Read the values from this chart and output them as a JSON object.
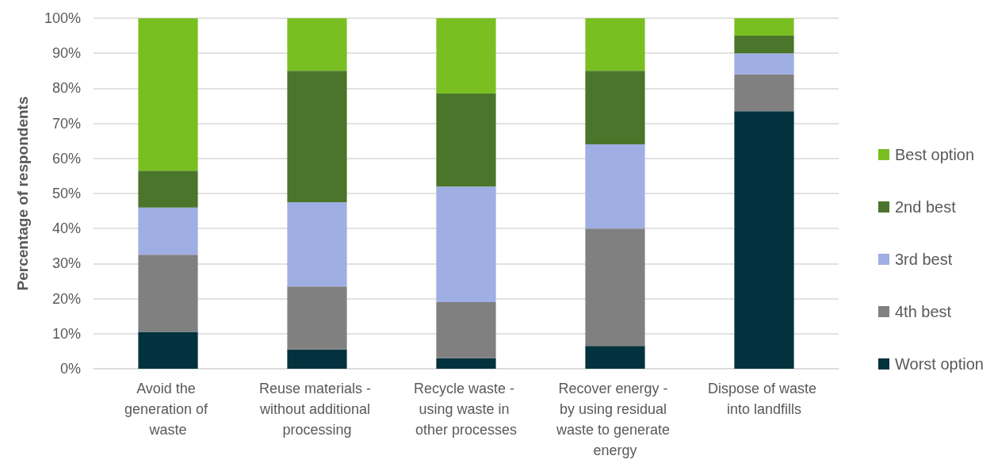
{
  "chart_data": {
    "type": "bar",
    "stacked": true,
    "ylabel": "Percentage of respondents",
    "categories": [
      "Avoid the generation of waste",
      "Reuse materials - without additional processing",
      "Recycle waste - using waste in other processes",
      "Recover energy - by using residual waste to generate energy",
      "Dispose of waste into landfills"
    ],
    "series": [
      {
        "name": "Worst option",
        "color": "#01323d",
        "values": [
          10.5,
          5.5,
          3,
          6.5,
          73.5
        ]
      },
      {
        "name": "4th best",
        "color": "#808080",
        "values": [
          22,
          18,
          16,
          33.5,
          10.5
        ]
      },
      {
        "name": "3rd best",
        "color": "#9faee3",
        "values": [
          13.5,
          24,
          33,
          24,
          6
        ]
      },
      {
        "name": "2nd best",
        "color": "#4a752b",
        "values": [
          10.5,
          37.5,
          26.5,
          21,
          5
        ]
      },
      {
        "name": "Best option",
        "color": "#7abf21",
        "values": [
          43.5,
          15,
          21.5,
          15,
          5
        ]
      }
    ],
    "ylim": [
      0,
      100
    ],
    "yticks": [
      {
        "value": 0,
        "label": "0%"
      },
      {
        "value": 10,
        "label": "10%"
      },
      {
        "value": 20,
        "label": "20%"
      },
      {
        "value": 30,
        "label": "30%"
      },
      {
        "value": 40,
        "label": "40%"
      },
      {
        "value": 50,
        "label": "50%"
      },
      {
        "value": 60,
        "label": "60%"
      },
      {
        "value": 70,
        "label": "70%"
      },
      {
        "value": 80,
        "label": "80%"
      },
      {
        "value": 90,
        "label": "90%"
      },
      {
        "value": 100,
        "label": "100%"
      }
    ],
    "grid": "y",
    "legend": "right"
  }
}
